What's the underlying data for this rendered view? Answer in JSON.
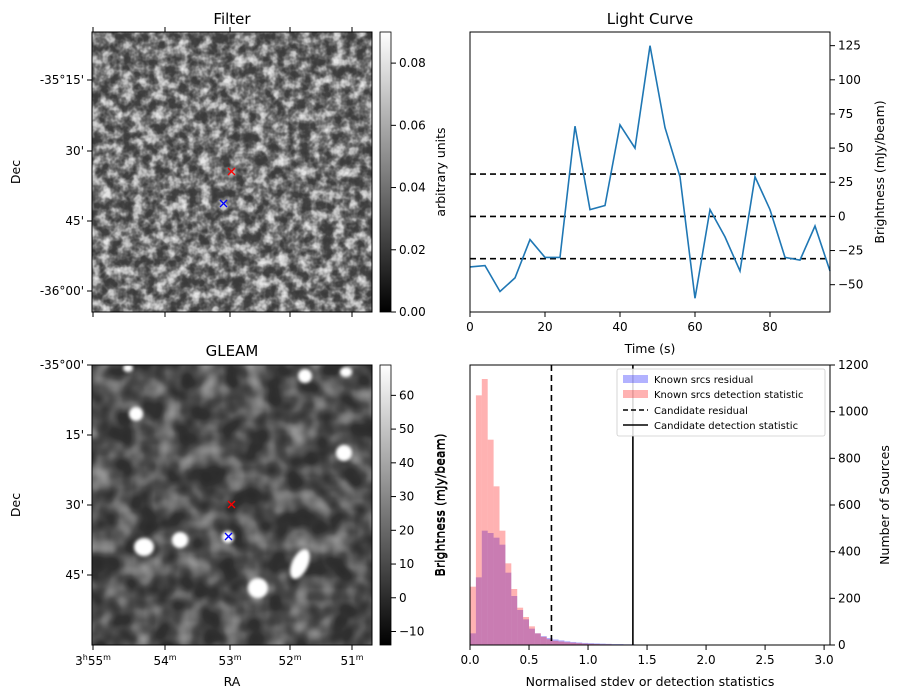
{
  "panels": {
    "filter": {
      "title": "Filter",
      "ylabel": "Dec",
      "yticks": [
        "-35°15'",
        "30'",
        "45'",
        "-36°00'"
      ],
      "colorbar": {
        "label": "arbitrary units",
        "ticks": [
          "0.00",
          "0.02",
          "0.04",
          "0.06",
          "0.08"
        ],
        "range": [
          0,
          0.09
        ]
      },
      "markers": [
        {
          "symbol": "x",
          "color": "#ff0000"
        },
        {
          "symbol": "x",
          "color": "#0000ff"
        }
      ]
    },
    "gleam": {
      "title": "GLEAM",
      "ylabel": "Dec",
      "xlabel": "RA",
      "yticks": [
        "-35°00'",
        "15'",
        "30'",
        "45'"
      ],
      "xticks": [
        {
          "main": "3",
          "sup1": "h",
          "mid": "55",
          "sup2": "m"
        },
        {
          "main": "54",
          "sup1": "",
          "mid": "",
          "sup2": "m"
        },
        {
          "main": "53",
          "sup1": "",
          "mid": "",
          "sup2": "m"
        },
        {
          "main": "52",
          "sup1": "",
          "mid": "",
          "sup2": "m"
        },
        {
          "main": "51",
          "sup1": "",
          "mid": "",
          "sup2": "m"
        }
      ],
      "colorbar": {
        "label": "Brightness (mJy/beam)",
        "ticks": [
          "−10",
          "0",
          "10",
          "20",
          "30",
          "40",
          "50",
          "60"
        ],
        "range": [
          -14,
          69
        ]
      },
      "markers": [
        {
          "symbol": "x",
          "color": "#ff0000"
        },
        {
          "symbol": "x",
          "color": "#0000ff"
        }
      ]
    }
  },
  "chart_data": [
    {
      "type": "line",
      "title": "Light Curve",
      "xlabel": "Time (s)",
      "ylabel": "Brightness (mJy/beam)",
      "xlim": [
        0,
        96
      ],
      "ylim": [
        -70,
        135
      ],
      "xticks": [
        0,
        20,
        40,
        60,
        80
      ],
      "yticks": [
        -50,
        -25,
        0,
        25,
        50,
        75,
        100,
        125
      ],
      "series": [
        {
          "color": "#1f77b4",
          "x": [
            0,
            4,
            8,
            12,
            16,
            20,
            24,
            28,
            32,
            36,
            40,
            44,
            48,
            52,
            56,
            60,
            64,
            68,
            72,
            76,
            80,
            84,
            88,
            92,
            96
          ],
          "y": [
            -37,
            -36,
            -55,
            -45,
            -17,
            -30,
            -30,
            66,
            5,
            8,
            67,
            50,
            125,
            65,
            29,
            -60,
            5,
            -15,
            -40,
            29,
            5,
            -30,
            -32,
            -7,
            -40
          ]
        }
      ],
      "hlines": [
        {
          "y": 31,
          "style": "dashed"
        },
        {
          "y": 0,
          "style": "dashed"
        },
        {
          "y": -31,
          "style": "dashed"
        }
      ]
    },
    {
      "type": "histogram",
      "xlabel": "Normalised stdev or detection statistics",
      "ylabel": "Brightness (mJy/beam)",
      "ylabel_right": "Number of Sources",
      "xlim": [
        0,
        3.05
      ],
      "ylim": [
        0,
        1200
      ],
      "xticks": [
        "0.0",
        "0.5",
        "1.0",
        "1.5",
        "2.0",
        "2.5",
        "3.0"
      ],
      "yticks": [
        0,
        200,
        400,
        600,
        800,
        1000,
        1200
      ],
      "bin_width": 0.05,
      "series": [
        {
          "name": "Known srcs residual",
          "color": "#0000ff",
          "counts": [
            50,
            290,
            490,
            480,
            460,
            430,
            310,
            210,
            150,
            110,
            70,
            50,
            38,
            30,
            24,
            20,
            16,
            13,
            11,
            9,
            8,
            7,
            6,
            5,
            4,
            4,
            3,
            3,
            2,
            2
          ]
        },
        {
          "name": "Known srcs detection statistic",
          "color": "#ff0000",
          "counts": [
            250,
            1070,
            1140,
            880,
            680,
            490,
            350,
            240,
            160,
            120,
            80,
            50,
            35,
            25,
            18,
            15,
            12,
            10,
            8,
            6,
            5,
            4,
            3,
            3,
            2,
            2,
            2,
            1,
            1,
            1
          ]
        }
      ],
      "vlines": [
        {
          "name": "Candidate residual",
          "x": 0.69,
          "style": "dashed"
        },
        {
          "name": "Candidate detection statistic",
          "x": 1.38,
          "style": "solid"
        }
      ]
    }
  ]
}
